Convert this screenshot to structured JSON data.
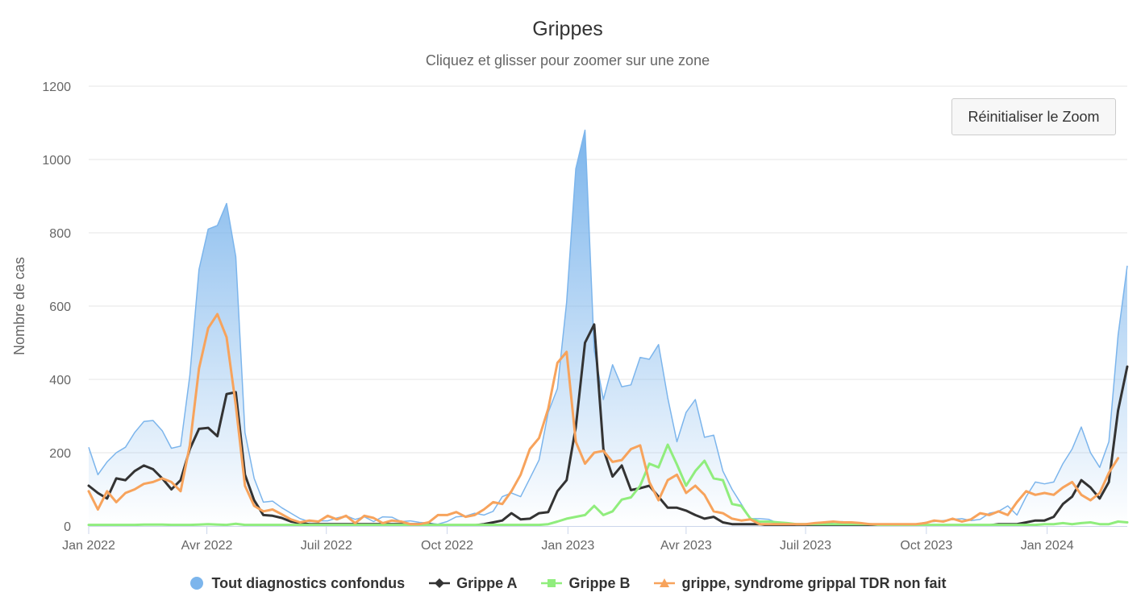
{
  "chart": {
    "title": "Grippes",
    "subtitle": "Cliquez et glisser pour zoomer sur une zone",
    "reset_zoom_label": "Réinitialiser le Zoom"
  },
  "chart_data": {
    "type": "area",
    "title": "Grippes",
    "subtitle": "Cliquez et glisser pour zoomer sur une zone",
    "xlabel": "",
    "ylabel": "Nombre de cas",
    "ylim": [
      0,
      1200
    ],
    "yticks": [
      0,
      200,
      400,
      600,
      800,
      1000,
      1200
    ],
    "x_axis_type": "datetime",
    "x_start": "2022-01-01",
    "x_interval_days": 7,
    "xticks": [
      {
        "date": "2022-01-01",
        "label": "Jan 2022"
      },
      {
        "date": "2022-04-01",
        "label": "Avr 2022"
      },
      {
        "date": "2022-07-01",
        "label": "Juil 2022"
      },
      {
        "date": "2022-10-01",
        "label": "Oct 2022"
      },
      {
        "date": "2023-01-01",
        "label": "Jan 2023"
      },
      {
        "date": "2023-04-01",
        "label": "Avr 2023"
      },
      {
        "date": "2023-07-01",
        "label": "Juil 2023"
      },
      {
        "date": "2023-10-01",
        "label": "Oct 2023"
      },
      {
        "date": "2024-01-01",
        "label": "Jan 2024"
      }
    ],
    "grid": true,
    "legend_position": "bottom-center",
    "series": [
      {
        "name": "Tout diagnostics confondus",
        "type": "area",
        "color": "#7cb5ec",
        "values": [
          215,
          140,
          175,
          200,
          215,
          255,
          285,
          288,
          260,
          212,
          218,
          410,
          700,
          810,
          820,
          880,
          735,
          255,
          130,
          65,
          68,
          50,
          35,
          20,
          12,
          14,
          14,
          22,
          28,
          18,
          25,
          12,
          25,
          24,
          12,
          14,
          10,
          8,
          5,
          12,
          25,
          27,
          35,
          30,
          40,
          80,
          90,
          80,
          130,
          180,
          310,
          375,
          610,
          975,
          1080,
          480,
          345,
          440,
          380,
          385,
          460,
          455,
          495,
          350,
          230,
          310,
          345,
          242,
          248,
          150,
          100,
          60,
          20,
          20,
          18,
          8,
          5,
          5,
          5,
          5,
          5,
          10,
          12,
          8,
          8,
          5,
          5,
          5,
          5,
          5,
          5,
          10,
          12,
          15,
          18,
          20,
          15,
          18,
          35,
          40,
          55,
          30,
          80,
          120,
          115,
          120,
          170,
          210,
          270,
          200,
          160,
          230,
          520,
          710
        ]
      },
      {
        "name": "Grippe A",
        "type": "line",
        "color": "#333333",
        "values": [
          110,
          90,
          75,
          130,
          125,
          150,
          165,
          155,
          130,
          100,
          125,
          210,
          265,
          268,
          245,
          360,
          365,
          140,
          70,
          30,
          28,
          22,
          12,
          8,
          5,
          5,
          5,
          5,
          5,
          5,
          5,
          5,
          5,
          5,
          5,
          5,
          5,
          5,
          2,
          2,
          2,
          2,
          2,
          5,
          10,
          15,
          35,
          18,
          20,
          35,
          38,
          95,
          125,
          270,
          500,
          550,
          210,
          135,
          165,
          98,
          103,
          110,
          80,
          50,
          50,
          42,
          30,
          20,
          25,
          10,
          5,
          5,
          5,
          5,
          2,
          2,
          2,
          2,
          2,
          2,
          2,
          2,
          2,
          2,
          2,
          2,
          2,
          2,
          2,
          2,
          2,
          2,
          2,
          2,
          2,
          2,
          2,
          2,
          2,
          5,
          5,
          5,
          10,
          15,
          15,
          25,
          60,
          80,
          125,
          105,
          75,
          120,
          315,
          435
        ]
      },
      {
        "name": "Grippe B",
        "type": "line",
        "color": "#90ed7d",
        "values": [
          3,
          3,
          3,
          3,
          3,
          3,
          4,
          4,
          4,
          3,
          3,
          3,
          4,
          5,
          4,
          3,
          6,
          3,
          3,
          3,
          3,
          3,
          3,
          3,
          3,
          3,
          3,
          3,
          3,
          3,
          3,
          3,
          3,
          3,
          3,
          3,
          3,
          3,
          3,
          3,
          3,
          3,
          3,
          3,
          3,
          3,
          3,
          3,
          3,
          3,
          5,
          12,
          20,
          25,
          30,
          55,
          30,
          40,
          72,
          78,
          110,
          170,
          160,
          222,
          168,
          110,
          150,
          178,
          130,
          125,
          60,
          55,
          20,
          12,
          12,
          10,
          8,
          5,
          5,
          5,
          5,
          5,
          5,
          5,
          5,
          5,
          3,
          3,
          3,
          3,
          3,
          3,
          3,
          3,
          3,
          3,
          3,
          3,
          3,
          3,
          3,
          3,
          3,
          3,
          5,
          5,
          8,
          5,
          8,
          10,
          5,
          5,
          12,
          10
        ]
      },
      {
        "name": "grippe, syndrome grippal TDR non fait",
        "type": "line",
        "color": "#f7a35c",
        "values": [
          95,
          45,
          95,
          65,
          90,
          100,
          115,
          120,
          130,
          120,
          95,
          220,
          430,
          540,
          578,
          515,
          330,
          110,
          55,
          40,
          45,
          32,
          18,
          10,
          15,
          12,
          28,
          18,
          28,
          8,
          28,
          22,
          8,
          15,
          12,
          5,
          5,
          10,
          30,
          30,
          38,
          25,
          30,
          45,
          65,
          60,
          95,
          140,
          210,
          240,
          320,
          445,
          475,
          230,
          170,
          200,
          205,
          175,
          180,
          210,
          220,
          120,
          70,
          125,
          140,
          90,
          110,
          85,
          40,
          35,
          20,
          15,
          18,
          5,
          5,
          5,
          5,
          5,
          5,
          8,
          10,
          12,
          10,
          10,
          8,
          5,
          5,
          5,
          5,
          5,
          5,
          8,
          15,
          12,
          20,
          12,
          18,
          35,
          30,
          40,
          30,
          65,
          95,
          85,
          90,
          85,
          105,
          120,
          85,
          70,
          90,
          145,
          185
        ]
      }
    ]
  }
}
